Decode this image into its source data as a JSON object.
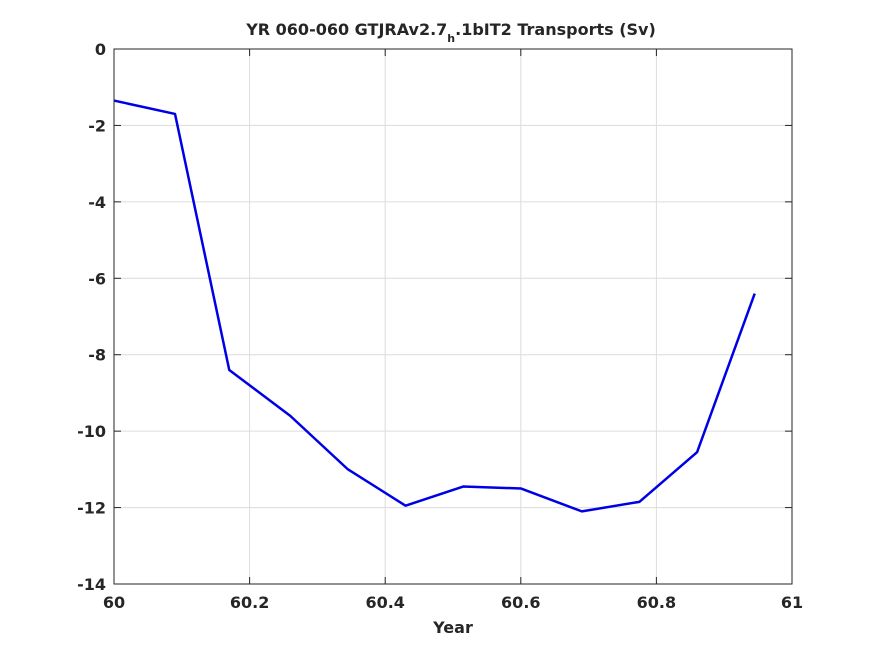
{
  "chart_data": {
    "type": "line",
    "title": {
      "prefix": "YR 060-060 GTJRAv2.7",
      "subscript": "h",
      "suffix": ".1bIT2 Transports (Sv)"
    },
    "xlabel": "Year",
    "ylabel": "",
    "xlim": [
      60,
      61
    ],
    "ylim": [
      -14,
      0
    ],
    "xticks": [
      60,
      60.2,
      60.4,
      60.6,
      60.8,
      61
    ],
    "xtick_labels": [
      "60",
      "60.2",
      "60.4",
      "60.6",
      "60.8",
      "61"
    ],
    "yticks": [
      0,
      -2,
      -4,
      -6,
      -8,
      -10,
      -12,
      -14
    ],
    "ytick_labels": [
      "0",
      "-2",
      "-4",
      "-6",
      "-8",
      "-10",
      "-12",
      "-14"
    ],
    "grid": true,
    "series": [
      {
        "color": "#0000e6",
        "x": [
          60.0,
          60.09,
          60.17,
          60.26,
          60.345,
          60.43,
          60.515,
          60.6,
          60.69,
          60.775,
          60.86,
          60.945
        ],
        "y": [
          -1.35,
          -1.7,
          -8.4,
          -9.6,
          -11.0,
          -11.95,
          -11.45,
          -11.5,
          -12.1,
          -11.85,
          -10.55,
          -6.4
        ]
      }
    ]
  }
}
